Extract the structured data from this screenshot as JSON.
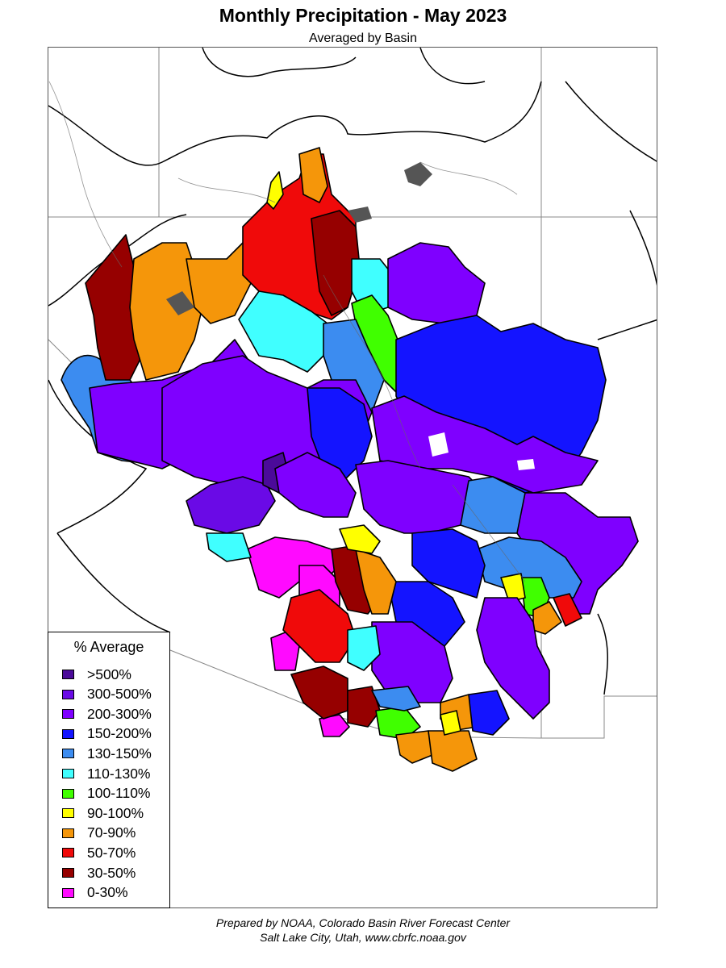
{
  "title": "Monthly Precipitation - May 2023",
  "subtitle": "Averaged by Basin",
  "legend": {
    "title": "% Average",
    "items": [
      {
        "label": ">500%",
        "color": "#4b0a9a"
      },
      {
        "label": "300-500%",
        "color": "#6a0ae6"
      },
      {
        "label": "200-300%",
        "color": "#7f00ff"
      },
      {
        "label": "150-200%",
        "color": "#1414ff"
      },
      {
        "label": "130-150%",
        "color": "#3c8cf0"
      },
      {
        "label": "110-130%",
        "color": "#40ffff"
      },
      {
        "label": "100-110%",
        "color": "#40ff00"
      },
      {
        "label": "90-100%",
        "color": "#ffff00"
      },
      {
        "label": "70-90%",
        "color": "#f5960a"
      },
      {
        "label": "50-70%",
        "color": "#f00a0a"
      },
      {
        "label": "30-50%",
        "color": "#960000"
      },
      {
        "label": "0-30%",
        "color": "#ff0aff"
      }
    ]
  },
  "credits": {
    "line1": "Prepared by NOAA, Colorado Basin River Forecast Center",
    "line2": "Salt Lake City, Utah, www.cbrfc.noaa.gov"
  }
}
